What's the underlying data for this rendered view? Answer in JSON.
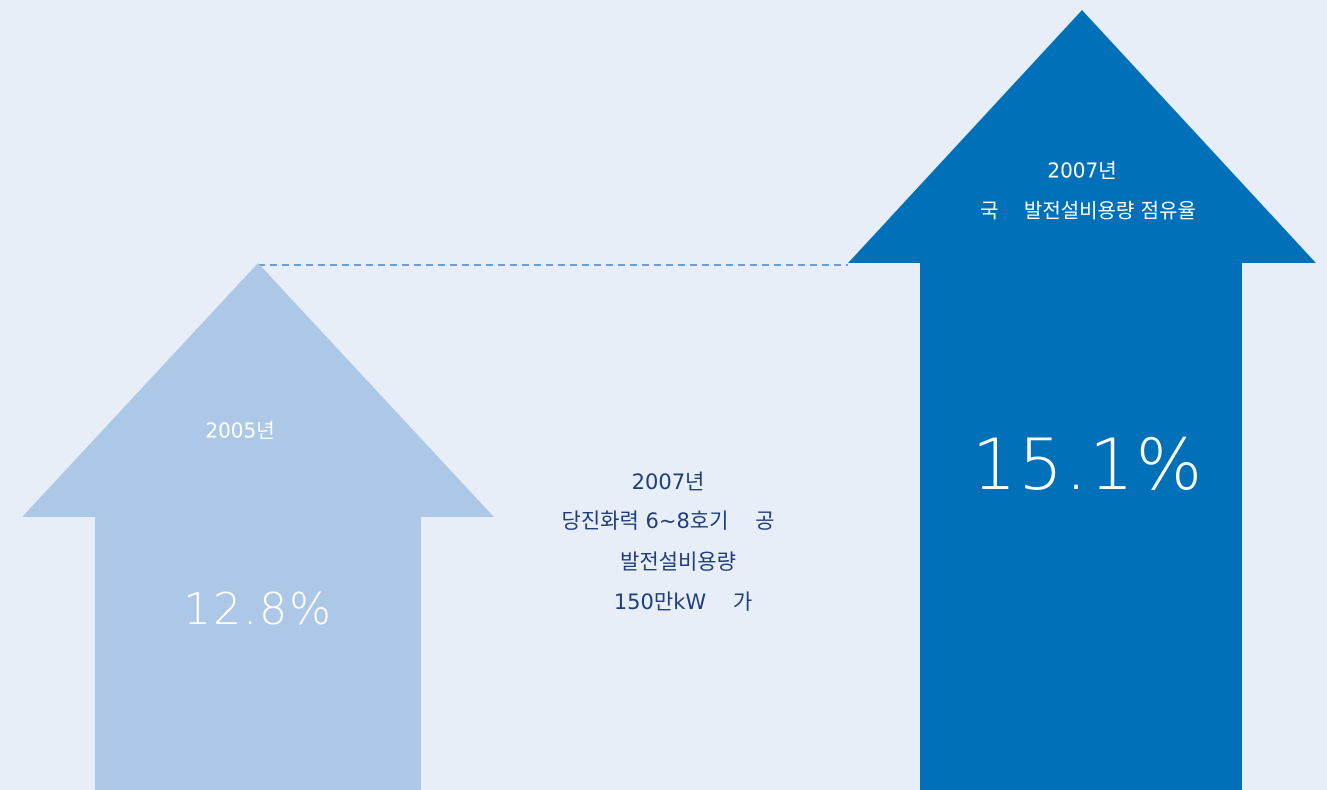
{
  "left": {
    "year": "2005년",
    "share": "12.8%"
  },
  "middle": {
    "lines": [
      "2007년",
      "당진화력 6~8호기    공",
      "발전설비용량",
      "150만kW    가"
    ]
  },
  "right": {
    "year": "2007년",
    "caption": "국    발전설비용량 점유율",
    "share": "15.1%"
  }
}
